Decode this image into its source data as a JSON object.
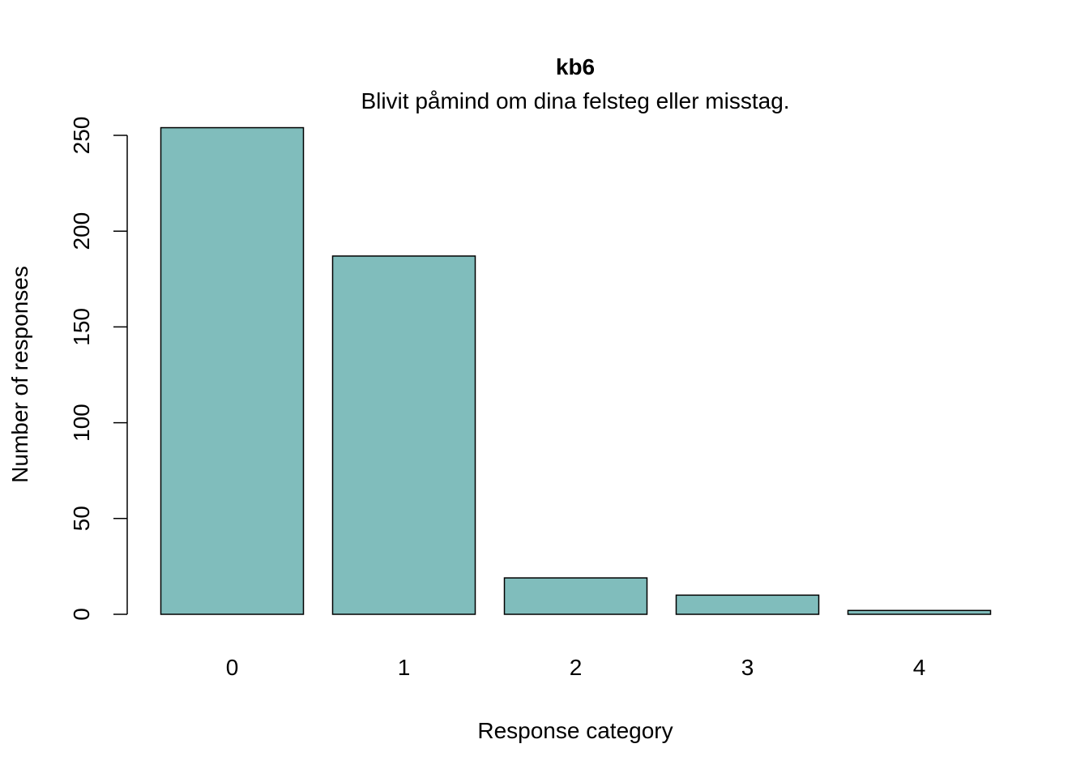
{
  "chart_data": {
    "type": "bar",
    "title": "kb6",
    "subtitle": "Blivit påmind om dina felsteg eller misstag.",
    "xlabel": "Response category",
    "ylabel": "Number of responses",
    "categories": [
      "0",
      "1",
      "2",
      "3",
      "4"
    ],
    "values": [
      254,
      187,
      19,
      10,
      2
    ],
    "ylim": [
      0,
      250
    ],
    "yticks": [
      0,
      50,
      100,
      150,
      200,
      250
    ],
    "grid": false,
    "legend": "none",
    "bar_color": "#80BDBC",
    "bar_border_color": "#000000"
  }
}
